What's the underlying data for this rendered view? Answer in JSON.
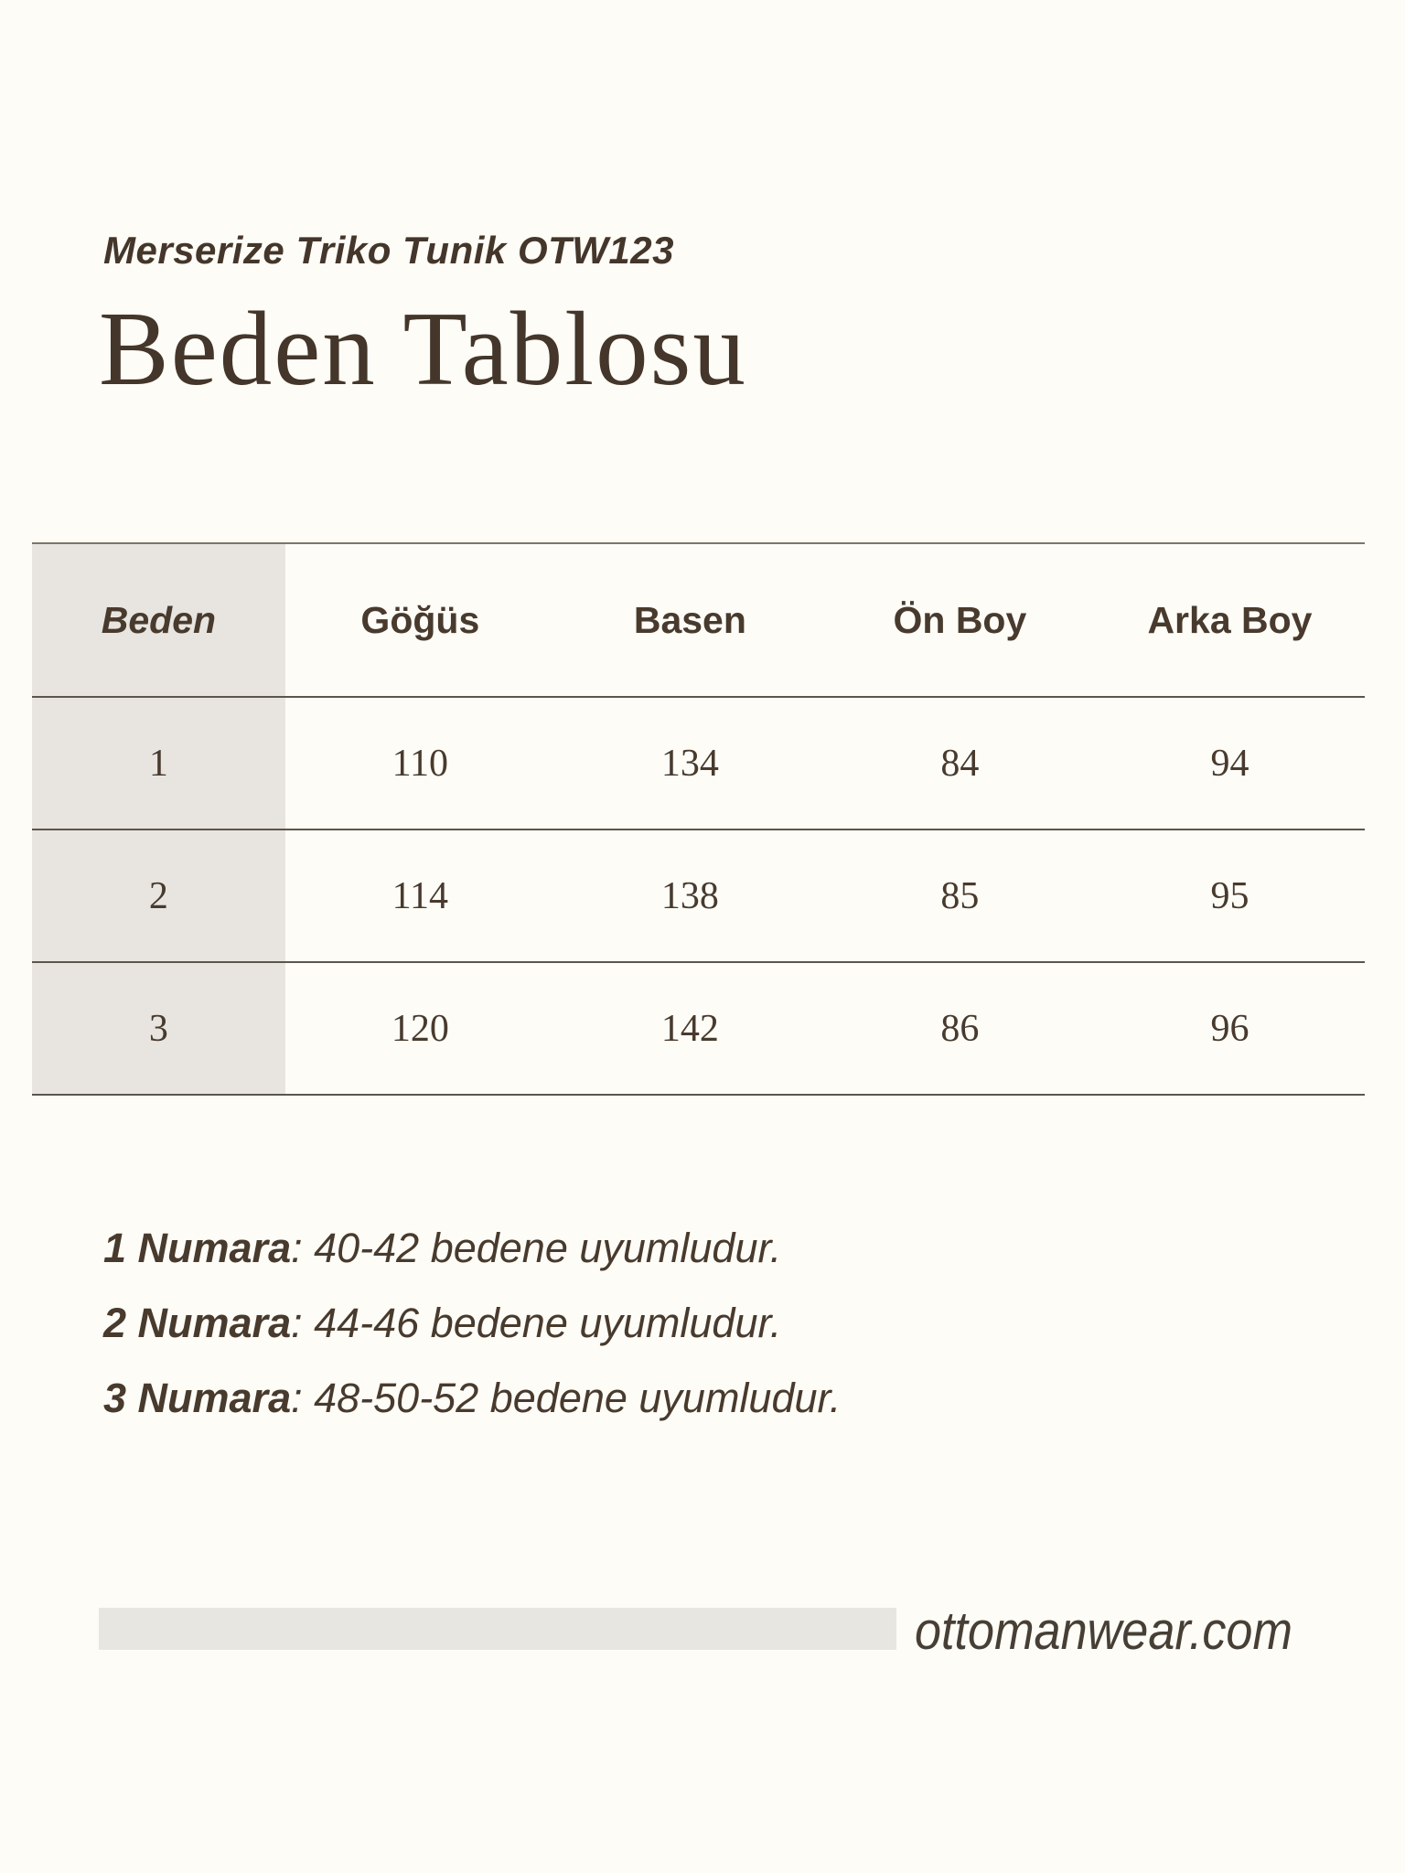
{
  "header": {
    "product_name": "Merserize Triko Tunik OTW123",
    "title": "Beden Tablosu"
  },
  "table": {
    "columns": [
      "Beden",
      "Göğüs",
      "Basen",
      "Ön Boy",
      "Arka Boy"
    ],
    "rows": [
      [
        "1",
        "110",
        "134",
        "84",
        "94"
      ],
      [
        "2",
        "114",
        "138",
        "85",
        "95"
      ],
      [
        "3",
        "120",
        "142",
        "86",
        "96"
      ]
    ]
  },
  "notes": [
    {
      "label": "1 Numara",
      "text": ": 40-42 bedene uyumludur."
    },
    {
      "label": "2 Numara",
      "text": ": 44-46 bedene uyumludur."
    },
    {
      "label": "3 Numara",
      "text": ": 48-50-52 bedene uyumludur."
    }
  ],
  "footer": {
    "website": "ottomanwear.com"
  },
  "colors": {
    "bg": "#fdfcf7",
    "ink": "#44362a",
    "text": "#483a2d",
    "line": "#5c554a",
    "line-soft": "#7c7668",
    "cellbg": "#e8e5e0",
    "barbg": "#e8e6e1"
  }
}
